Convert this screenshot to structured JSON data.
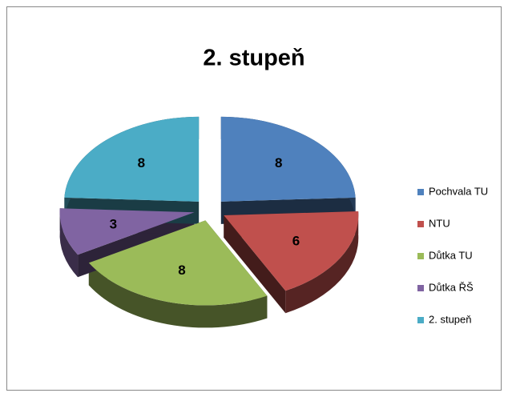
{
  "chart_data": {
    "type": "pie",
    "title": "2. stupeň",
    "categories": [
      "Pochvala TU",
      "NTU",
      "Důtka TU",
      "Důtka ŘŠ",
      "2. stupeň"
    ],
    "values": [
      8,
      6,
      8,
      3,
      8
    ],
    "colors": [
      "#4f81bd",
      "#c0504d",
      "#9bbb59",
      "#8064a2",
      "#4bacc6"
    ],
    "legend": "right",
    "three_d": true,
    "exploded": true
  }
}
